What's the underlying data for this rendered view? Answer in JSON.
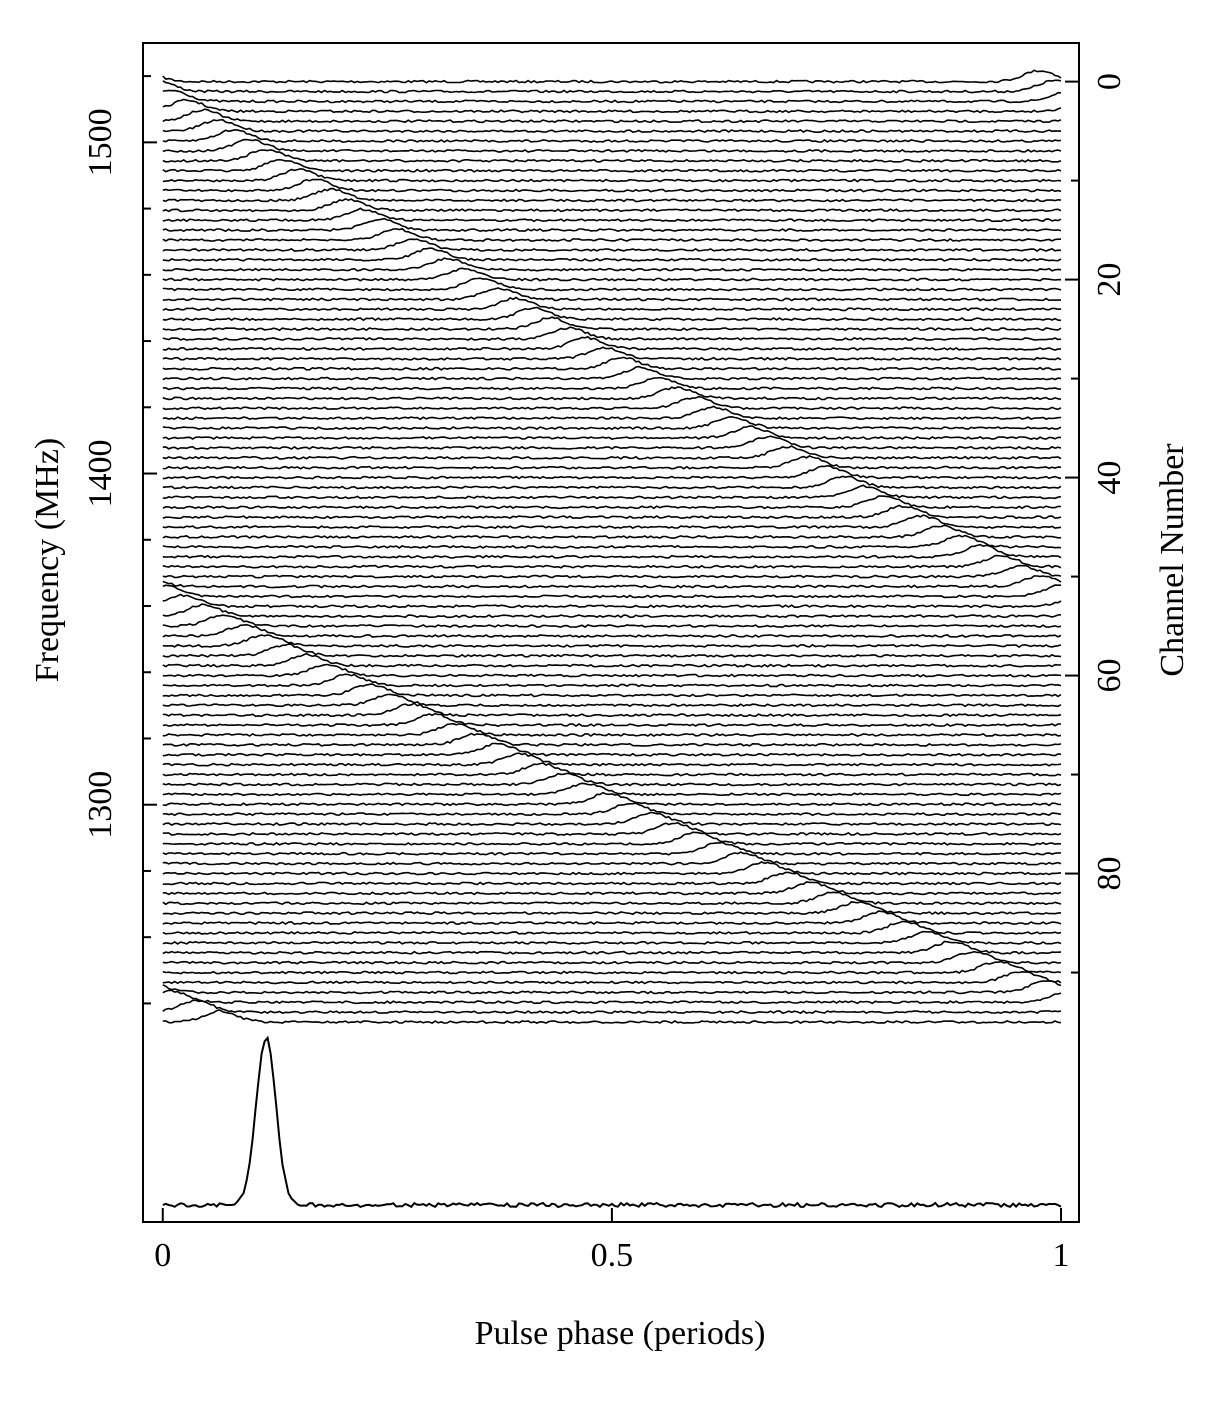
{
  "chart_data": {
    "type": "dispersion",
    "xlabel": "Pulse phase (periods)",
    "ylabel": "Frequency (MHz)",
    "y2label": "Channel Number",
    "xlim": [
      -0.022,
      1.02
    ],
    "xticks": [
      0,
      0.5,
      1
    ],
    "ylim": [
      1174,
      1530
    ],
    "yticks": [
      1300,
      1400,
      1500
    ],
    "yminorticks": [
      1240,
      1260,
      1280,
      1320,
      1340,
      1360,
      1380,
      1420,
      1440,
      1460,
      1480,
      1520
    ],
    "y2lim": [
      -3.9,
      115.2
    ],
    "y2_inverted": true,
    "y2ticks": [
      0,
      20,
      40,
      60,
      80
    ],
    "y2minorticks": [
      10,
      30,
      50,
      70,
      90
    ],
    "color": "#000000",
    "channel_peak_phase": [
      0.976,
      0.993,
      0.01,
      0.027,
      0.045,
      0.062,
      0.079,
      0.097,
      0.115,
      0.133,
      0.151,
      0.169,
      0.187,
      0.205,
      0.223,
      0.242,
      0.26,
      0.279,
      0.298,
      0.317,
      0.336,
      0.355,
      0.374,
      0.393,
      0.413,
      0.432,
      0.452,
      0.472,
      0.492,
      0.512,
      0.532,
      0.552,
      0.572,
      0.593,
      0.613,
      0.634,
      0.654,
      0.675,
      0.696,
      0.717,
      0.738,
      0.759,
      0.781,
      0.802,
      0.824,
      0.845,
      0.867,
      0.889,
      0.911,
      0.933,
      0.955,
      0.978,
      0.0,
      0.022,
      0.045,
      0.068,
      0.091,
      0.114,
      0.137,
      0.16,
      0.183,
      0.206,
      0.23,
      0.253,
      0.277,
      0.301,
      0.325,
      0.349,
      0.373,
      0.397,
      0.421,
      0.446,
      0.47,
      0.495,
      0.52,
      0.544,
      0.569,
      0.594,
      0.62,
      0.645,
      0.67,
      0.696,
      0.721,
      0.747,
      0.773,
      0.799,
      0.825,
      0.851,
      0.877,
      0.903,
      0.93,
      0.956,
      0.983,
      0.01,
      0.037,
      0.064
    ],
    "profile_peak_phase": 0.115
  }
}
